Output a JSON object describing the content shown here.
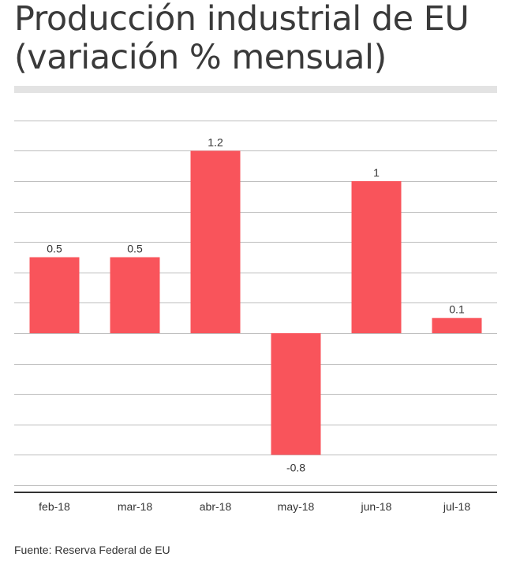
{
  "title_lines": [
    "Producción industrial de EU",
    "(variación % mensual)"
  ],
  "source": "Fuente: Reserva Federal de EU",
  "colors": {
    "bar": "#f9545b",
    "grid": "#bdbdbd",
    "axis": "#333333",
    "title_rule": "#e3e3e3"
  },
  "chart_data": {
    "type": "bar",
    "title": "Producción industrial de EU (variación % mensual)",
    "categories": [
      "feb-18",
      "mar-18",
      "abr-18",
      "may-18",
      "jun-18",
      "jul-18"
    ],
    "values": [
      0.5,
      0.5,
      1.2,
      -0.8,
      1,
      0.1
    ],
    "value_labels": [
      "0.5",
      "0.5",
      "1.2",
      "-0.8",
      "1",
      "0.1"
    ],
    "xlabel": "",
    "ylabel": "",
    "ylim": [
      -1.0,
      1.4
    ],
    "grid_step": 0.2,
    "grid": true,
    "y_tick_labels_shown": false,
    "legend": "none"
  }
}
